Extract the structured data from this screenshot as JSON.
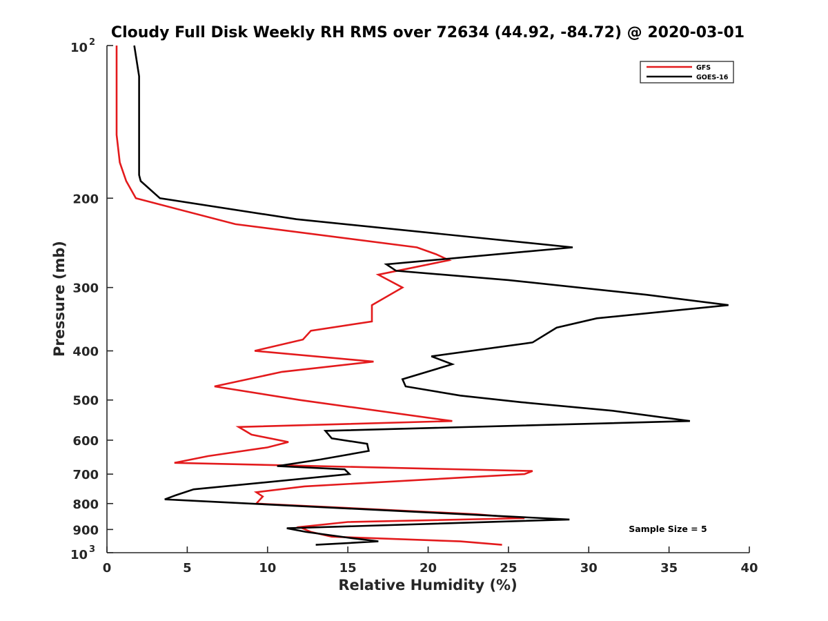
{
  "chart_data": {
    "type": "line",
    "title": "Cloudy Full Disk Weekly RH RMS over 72634 (44.92, -84.72) @ 2020-03-01",
    "xlabel": "Relative Humidity (%)",
    "ylabel": "Pressure (mb)",
    "xlim": [
      0,
      40
    ],
    "ylim": [
      100,
      1000
    ],
    "y_scale": "log",
    "y_reversed": true,
    "grid": false,
    "legend_position": "top-right",
    "x_ticks": [
      "0",
      "5",
      "10",
      "15",
      "20",
      "25",
      "30",
      "35",
      "40"
    ],
    "y_ticks": [
      {
        "value": 100,
        "base": "10",
        "exp": "2"
      },
      {
        "value": 200,
        "label": "200"
      },
      {
        "value": 300,
        "label": "300"
      },
      {
        "value": 400,
        "label": "400"
      },
      {
        "value": 500,
        "label": "500"
      },
      {
        "value": 600,
        "label": "600"
      },
      {
        "value": 700,
        "label": "700"
      },
      {
        "value": 800,
        "label": "800"
      },
      {
        "value": 900,
        "label": "900"
      },
      {
        "value": 1000,
        "base": "10",
        "exp": "3"
      }
    ],
    "annotation": "Sample Size = 5",
    "series": [
      {
        "name": "GFS",
        "color": "#e31a1c",
        "points": [
          [
            0.6,
            100
          ],
          [
            0.6,
            125
          ],
          [
            0.6,
            150
          ],
          [
            0.8,
            170
          ],
          [
            1.2,
            185
          ],
          [
            1.8,
            200
          ],
          [
            8.0,
            225
          ],
          [
            19.3,
            250
          ],
          [
            20.5,
            258
          ],
          [
            21.3,
            265
          ],
          [
            16.9,
            283
          ],
          [
            18.4,
            300
          ],
          [
            16.5,
            325
          ],
          [
            16.5,
            350
          ],
          [
            12.7,
            365
          ],
          [
            12.2,
            380
          ],
          [
            9.2,
            400
          ],
          [
            16.6,
            420
          ],
          [
            10.9,
            440
          ],
          [
            6.7,
            470
          ],
          [
            12.0,
            500
          ],
          [
            21.5,
            550
          ],
          [
            8.2,
            565
          ],
          [
            9.0,
            585
          ],
          [
            11.3,
            605
          ],
          [
            10.0,
            620
          ],
          [
            6.3,
            645
          ],
          [
            4.2,
            665
          ],
          [
            26.5,
            690
          ],
          [
            26.0,
            700
          ],
          [
            12.3,
            740
          ],
          [
            9.3,
            760
          ],
          [
            9.7,
            775
          ],
          [
            9.3,
            800
          ],
          [
            23.0,
            840
          ],
          [
            26.0,
            855
          ],
          [
            15.0,
            870
          ],
          [
            12.0,
            890
          ],
          [
            12.7,
            910
          ],
          [
            14.0,
            930
          ],
          [
            22.0,
            950
          ],
          [
            24.6,
            965
          ]
        ]
      },
      {
        "name": "GOES-16",
        "color": "#000000",
        "points": [
          [
            1.7,
            100
          ],
          [
            2.0,
            115
          ],
          [
            2.0,
            130
          ],
          [
            2.0,
            150
          ],
          [
            2.0,
            180
          ],
          [
            2.1,
            185
          ],
          [
            3.3,
            200
          ],
          [
            11.8,
            220
          ],
          [
            29.0,
            250
          ],
          [
            17.4,
            270
          ],
          [
            18.0,
            278
          ],
          [
            25.0,
            290
          ],
          [
            33.6,
            310
          ],
          [
            38.7,
            325
          ],
          [
            30.5,
            345
          ],
          [
            28.0,
            360
          ],
          [
            26.5,
            385
          ],
          [
            20.2,
            410
          ],
          [
            21.5,
            425
          ],
          [
            18.4,
            455
          ],
          [
            18.6,
            470
          ],
          [
            22.0,
            490
          ],
          [
            25.8,
            505
          ],
          [
            31.5,
            525
          ],
          [
            36.3,
            550
          ],
          [
            13.6,
            575
          ],
          [
            14.0,
            595
          ],
          [
            16.2,
            610
          ],
          [
            16.3,
            630
          ],
          [
            13.3,
            655
          ],
          [
            10.6,
            675
          ],
          [
            14.8,
            685
          ],
          [
            15.1,
            700
          ],
          [
            5.4,
            750
          ],
          [
            4.3,
            770
          ],
          [
            3.6,
            785
          ],
          [
            28.8,
            860
          ],
          [
            11.2,
            895
          ],
          [
            12.4,
            910
          ],
          [
            15.1,
            935
          ],
          [
            16.9,
            950
          ],
          [
            13.0,
            965
          ]
        ]
      }
    ]
  }
}
